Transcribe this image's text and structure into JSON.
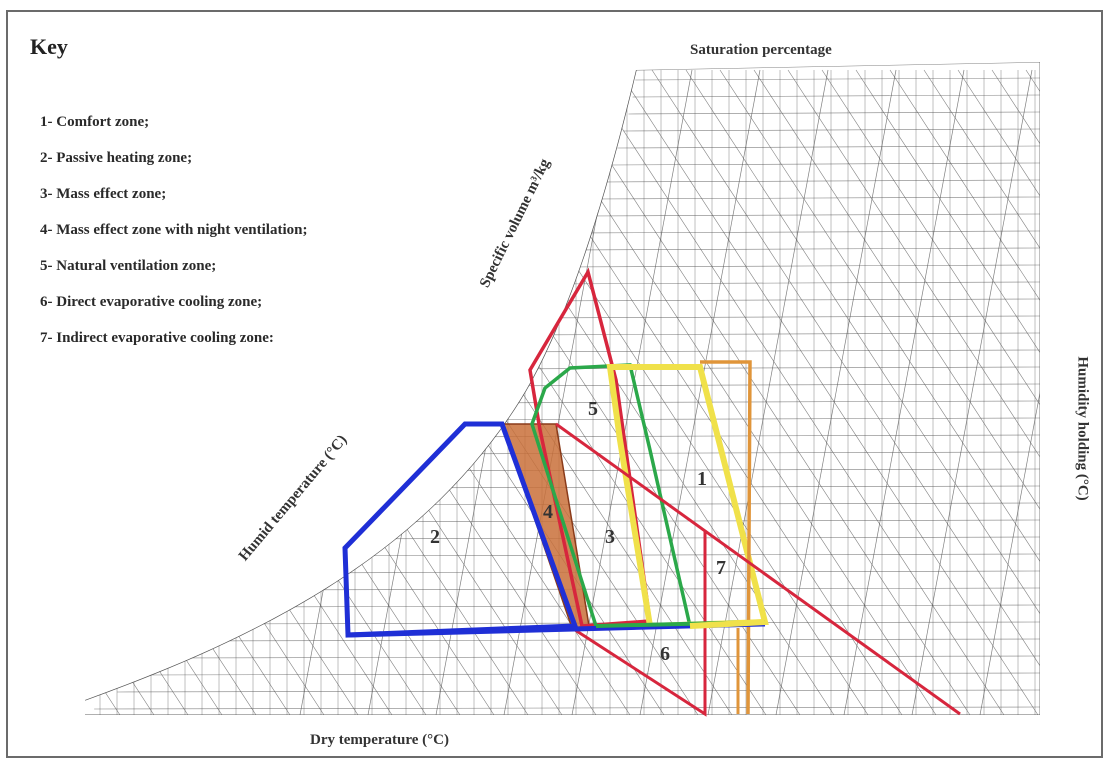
{
  "key": {
    "title": "Key",
    "items": [
      "1- Comfort zone;",
      "2- Passive heating zone;",
      "3- Mass effect zone;",
      "4- Mass effect zone with night ventilation;",
      "5- Natural ventilation zone;",
      "6- Direct evaporative cooling zone;",
      "7- Indirect evaporative cooling zone:"
    ]
  },
  "axes": {
    "top": "Saturation percentage",
    "diagonal_volume": "Specific volume m³/kg",
    "diagonal_humid": "Humid temperature (°C)",
    "right": "Humidity holding (°C)",
    "bottom": "Dry temperature (°C)"
  },
  "zone_labels": [
    "1",
    "2",
    "3",
    "4",
    "5",
    "6",
    "7"
  ],
  "colors": {
    "comfort": "#f0e14a",
    "passive_heating": "#1f2fd6",
    "mass_effect": "#d7263d",
    "mass_night_vent": "#e8743b",
    "natural_vent": "#2ba84a",
    "direct_evap": "#d7263d",
    "indirect_evap": "#e0953a",
    "grid": "#555555"
  }
}
